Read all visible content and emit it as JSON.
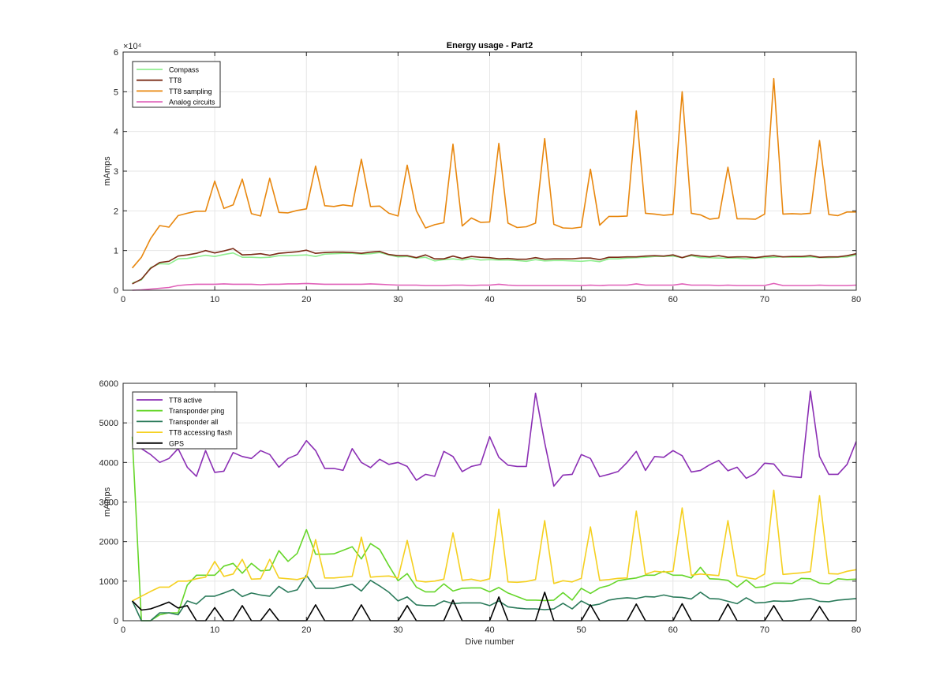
{
  "chart_data": [
    {
      "type": "line",
      "title": "Energy usage - Part2",
      "xlabel": "",
      "ylabel": "mAmps",
      "y_exponent_label": "×10⁴",
      "xlim": [
        0,
        80
      ],
      "ylim": [
        0,
        60000
      ],
      "xticks": [
        "0",
        "10",
        "20",
        "30",
        "40",
        "50",
        "60",
        "70",
        "80"
      ],
      "yticks": [
        "0",
        "1",
        "2",
        "3",
        "4",
        "5",
        "6"
      ],
      "grid": true,
      "legend": "top-left",
      "x": [
        1,
        2,
        3,
        4,
        5,
        6,
        7,
        8,
        9,
        10,
        11,
        12,
        13,
        14,
        15,
        16,
        17,
        18,
        19,
        20,
        21,
        22,
        23,
        24,
        25,
        26,
        27,
        28,
        29,
        30,
        31,
        32,
        33,
        34,
        35,
        36,
        37,
        38,
        39,
        40,
        41,
        42,
        43,
        44,
        45,
        46,
        47,
        48,
        49,
        50,
        51,
        52,
        53,
        54,
        55,
        56,
        57,
        58,
        59,
        60,
        61,
        62,
        63,
        64,
        65,
        66,
        67,
        68,
        69,
        70,
        71,
        72,
        73,
        74,
        75,
        76,
        77,
        78,
        79,
        80
      ],
      "series": [
        {
          "name": "Compass",
          "color": "#90ee90",
          "values": [
            1800,
            2600,
            5700,
            6700,
            6600,
            7900,
            8000,
            8400,
            8800,
            8500,
            9000,
            9400,
            8300,
            8300,
            8200,
            8300,
            8700,
            8700,
            8800,
            8900,
            8500,
            9100,
            9200,
            9300,
            9300,
            9100,
            9200,
            9500,
            8900,
            8400,
            8500,
            8100,
            8300,
            7400,
            7700,
            7900,
            7600,
            8000,
            7600,
            7700,
            7600,
            7600,
            7500,
            7300,
            7700,
            7400,
            7500,
            7500,
            7400,
            7300,
            7500,
            7200,
            7900,
            7900,
            8100,
            8200,
            8300,
            8500,
            8500,
            8600,
            8200,
            8700,
            8200,
            8200,
            8100,
            8100,
            8100,
            7900,
            8100,
            8200,
            8300,
            8400,
            8300,
            8300,
            8400,
            8200,
            8200,
            8300,
            8400,
            8900
          ]
        },
        {
          "name": "TT8",
          "color": "#7b2c17",
          "values": [
            1600,
            2800,
            5500,
            7000,
            7300,
            8600,
            8900,
            9300,
            10000,
            9400,
            9900,
            10500,
            8900,
            9000,
            9200,
            8800,
            9300,
            9500,
            9700,
            10100,
            9300,
            9500,
            9600,
            9600,
            9500,
            9300,
            9600,
            9800,
            9000,
            8700,
            8700,
            8200,
            8900,
            7900,
            7900,
            8600,
            8000,
            8500,
            8300,
            8200,
            7900,
            8000,
            7800,
            7800,
            8200,
            7800,
            7900,
            7900,
            7900,
            8100,
            8100,
            7700,
            8300,
            8300,
            8400,
            8400,
            8600,
            8700,
            8600,
            8900,
            8200,
            8900,
            8600,
            8400,
            8700,
            8300,
            8400,
            8400,
            8200,
            8500,
            8700,
            8400,
            8500,
            8500,
            8700,
            8300,
            8400,
            8400,
            8700,
            9200
          ]
        },
        {
          "name": "TT8 sampling",
          "color": "#e8870e",
          "values": [
            5600,
            8300,
            13000,
            16300,
            15900,
            18800,
            19400,
            19900,
            19900,
            27500,
            20600,
            21500,
            28000,
            19300,
            18700,
            28200,
            19600,
            19500,
            20100,
            20500,
            31300,
            21300,
            21100,
            21500,
            21200,
            33000,
            21100,
            21200,
            19400,
            18700,
            31500,
            20000,
            15700,
            16500,
            17000,
            36800,
            16200,
            18200,
            17100,
            17200,
            37000,
            16900,
            15800,
            16000,
            16900,
            38200,
            16600,
            15700,
            15600,
            15900,
            30500,
            16400,
            18600,
            18600,
            18700,
            45200,
            19400,
            19200,
            18900,
            19100,
            50000,
            19400,
            19000,
            17900,
            18200,
            31000,
            18000,
            18000,
            17900,
            19200,
            53300,
            19200,
            19300,
            19200,
            19400,
            37700,
            19100,
            18800,
            19700,
            19700
          ]
        },
        {
          "name": "Analog circuits",
          "color": "#e060b8",
          "values": [
            0,
            100,
            300,
            500,
            700,
            1200,
            1400,
            1500,
            1500,
            1500,
            1600,
            1500,
            1500,
            1500,
            1400,
            1500,
            1500,
            1600,
            1600,
            1700,
            1600,
            1500,
            1500,
            1500,
            1500,
            1500,
            1600,
            1500,
            1400,
            1300,
            1300,
            1300,
            1200,
            1200,
            1200,
            1300,
            1300,
            1200,
            1300,
            1300,
            1500,
            1300,
            1200,
            1200,
            1200,
            1200,
            1200,
            1200,
            1200,
            1200,
            1300,
            1200,
            1300,
            1300,
            1300,
            1600,
            1300,
            1300,
            1300,
            1300,
            1600,
            1300,
            1300,
            1300,
            1200,
            1300,
            1200,
            1200,
            1200,
            1200,
            1700,
            1200,
            1200,
            1200,
            1200,
            1300,
            1200,
            1200,
            1200,
            1300
          ]
        }
      ]
    },
    {
      "type": "line",
      "title": "",
      "xlabel": "Dive number",
      "ylabel": "mAmps",
      "xlim": [
        0,
        80
      ],
      "ylim": [
        0,
        6000
      ],
      "xticks": [
        "0",
        "10",
        "20",
        "30",
        "40",
        "50",
        "60",
        "70",
        "80"
      ],
      "yticks": [
        "0",
        "1000",
        "2000",
        "3000",
        "4000",
        "5000",
        "6000"
      ],
      "grid": true,
      "legend": "top-left",
      "x": [
        1,
        2,
        3,
        4,
        5,
        6,
        7,
        8,
        9,
        10,
        11,
        12,
        13,
        14,
        15,
        16,
        17,
        18,
        19,
        20,
        21,
        22,
        23,
        24,
        25,
        26,
        27,
        28,
        29,
        30,
        31,
        32,
        33,
        34,
        35,
        36,
        37,
        38,
        39,
        40,
        41,
        42,
        43,
        44,
        45,
        46,
        47,
        48,
        49,
        50,
        51,
        52,
        53,
        54,
        55,
        56,
        57,
        58,
        59,
        60,
        61,
        62,
        63,
        64,
        65,
        66,
        67,
        68,
        69,
        70,
        71,
        72,
        73,
        74,
        75,
        76,
        77,
        78,
        79,
        80
      ],
      "series": [
        {
          "name": "TT8 active",
          "color": "#8b2fb4",
          "values": [
            4550,
            4350,
            4200,
            4000,
            4100,
            4350,
            3880,
            3650,
            4300,
            3750,
            3780,
            4250,
            4150,
            4100,
            4300,
            4200,
            3880,
            4100,
            4200,
            4550,
            4300,
            3850,
            3850,
            3800,
            4350,
            4000,
            3870,
            4080,
            3950,
            4000,
            3900,
            3550,
            3700,
            3650,
            4280,
            4150,
            3770,
            3900,
            3950,
            4650,
            4130,
            3930,
            3900,
            3900,
            5750,
            4500,
            3400,
            3680,
            3700,
            4200,
            4100,
            3640,
            3700,
            3770,
            4000,
            4280,
            3800,
            4150,
            4130,
            4300,
            4170,
            3760,
            3800,
            3940,
            4050,
            3790,
            3880,
            3600,
            3720,
            3980,
            3960,
            3680,
            3640,
            3620,
            5800,
            4150,
            3700,
            3700,
            3950,
            4530
          ]
        },
        {
          "name": "Transponder ping",
          "color": "#66d62a",
          "values": [
            4650,
            0,
            0,
            150,
            200,
            200,
            900,
            1150,
            1150,
            1150,
            1380,
            1450,
            1200,
            1450,
            1260,
            1280,
            1770,
            1500,
            1700,
            2300,
            1680,
            1680,
            1690,
            1780,
            1870,
            1560,
            1950,
            1800,
            1390,
            1010,
            1190,
            850,
            730,
            730,
            930,
            750,
            820,
            830,
            830,
            730,
            840,
            700,
            610,
            520,
            520,
            510,
            520,
            710,
            520,
            820,
            690,
            830,
            890,
            1010,
            1050,
            1080,
            1150,
            1150,
            1250,
            1150,
            1150,
            1080,
            1350,
            1060,
            1050,
            1020,
            850,
            1030,
            840,
            860,
            950,
            950,
            940,
            1070,
            1060,
            950,
            930,
            1060,
            1040,
            1050
          ]
        },
        {
          "name": "Transponder all",
          "color": "#2a7a5a",
          "values": [
            500,
            0,
            0,
            200,
            200,
            150,
            500,
            420,
            620,
            620,
            700,
            790,
            610,
            700,
            650,
            620,
            870,
            720,
            780,
            1150,
            820,
            820,
            820,
            870,
            920,
            750,
            1020,
            880,
            720,
            500,
            600,
            400,
            380,
            380,
            500,
            430,
            450,
            450,
            450,
            380,
            500,
            350,
            320,
            300,
            300,
            280,
            300,
            440,
            300,
            500,
            380,
            420,
            520,
            560,
            580,
            560,
            610,
            600,
            650,
            600,
            590,
            550,
            720,
            560,
            550,
            490,
            430,
            580,
            450,
            460,
            500,
            490,
            500,
            540,
            560,
            490,
            480,
            520,
            540,
            560
          ]
        },
        {
          "name": "TT8 accessing flash",
          "color": "#f5d020",
          "values": [
            500,
            620,
            740,
            850,
            850,
            1000,
            1000,
            1060,
            1100,
            1500,
            1120,
            1180,
            1550,
            1050,
            1060,
            1550,
            1080,
            1060,
            1040,
            1100,
            2050,
            1080,
            1080,
            1100,
            1120,
            2110,
            1100,
            1120,
            1130,
            1080,
            2030,
            1010,
            980,
            1000,
            1050,
            2220,
            1020,
            1050,
            1000,
            1060,
            2820,
            980,
            970,
            990,
            1040,
            2530,
            940,
            1010,
            980,
            1070,
            2370,
            1020,
            1040,
            1070,
            1080,
            2770,
            1170,
            1250,
            1230,
            1250,
            2850,
            1150,
            1180,
            1160,
            1140,
            2530,
            1140,
            1090,
            1050,
            1180,
            3300,
            1170,
            1190,
            1210,
            1240,
            3160,
            1190,
            1180,
            1250,
            1290
          ]
        },
        {
          "name": "GPS",
          "color": "#000000",
          "values": [
            500,
            270,
            300,
            380,
            470,
            320,
            380,
            0,
            0,
            330,
            0,
            0,
            380,
            0,
            0,
            300,
            0,
            0,
            0,
            0,
            400,
            0,
            0,
            0,
            0,
            400,
            0,
            0,
            0,
            0,
            380,
            0,
            0,
            0,
            0,
            520,
            0,
            0,
            0,
            0,
            600,
            0,
            0,
            0,
            0,
            720,
            0,
            0,
            0,
            0,
            400,
            0,
            0,
            0,
            0,
            420,
            0,
            0,
            0,
            0,
            430,
            0,
            0,
            0,
            0,
            420,
            0,
            0,
            0,
            0,
            380,
            0,
            0,
            0,
            0,
            360,
            0,
            0,
            0,
            0
          ]
        }
      ]
    }
  ]
}
